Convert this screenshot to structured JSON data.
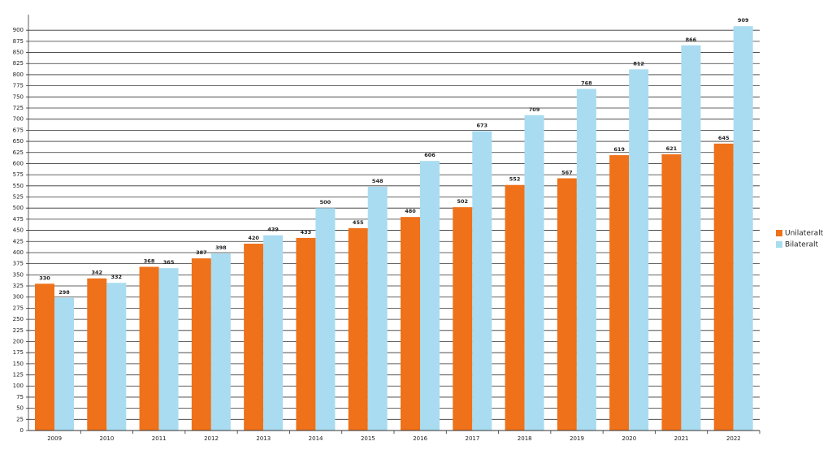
{
  "chart_data": {
    "type": "bar",
    "categories": [
      "2009",
      "2010",
      "2011",
      "2012",
      "2013",
      "2014",
      "2015",
      "2016",
      "2017",
      "2018",
      "2019",
      "2020",
      "2021",
      "2022"
    ],
    "series": [
      {
        "name": "Unilateralt",
        "color": "#ef7119",
        "values": [
          330,
          342,
          368,
          387,
          420,
          433,
          455,
          480,
          502,
          552,
          567,
          619,
          621,
          645
        ]
      },
      {
        "name": "Bilateralt",
        "color": "#a9dcf1",
        "values": [
          298,
          332,
          365,
          398,
          439,
          500,
          548,
          606,
          673,
          709,
          768,
          812,
          866,
          909
        ]
      }
    ],
    "ylim": [
      0,
      935
    ],
    "yticks": [
      0,
      25,
      50,
      75,
      100,
      125,
      150,
      175,
      200,
      225,
      250,
      275,
      300,
      325,
      350,
      375,
      400,
      425,
      450,
      475,
      500,
      525,
      550,
      575,
      600,
      625,
      650,
      675,
      700,
      725,
      750,
      775,
      800,
      825,
      850,
      875,
      900
    ],
    "grid": true,
    "legend": "right"
  }
}
